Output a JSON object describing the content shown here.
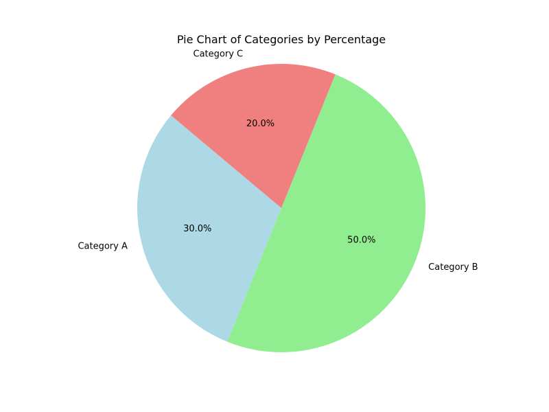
{
  "chart_data": {
    "type": "pie",
    "title": "Pie Chart of Categories by Percentage",
    "start_angle_deg": 140,
    "direction": "counterclockwise",
    "slices": [
      {
        "label": "Category A",
        "value": 30,
        "pct_label": "30.0%",
        "color": "#add8e6"
      },
      {
        "label": "Category B",
        "value": 50,
        "pct_label": "50.0%",
        "color": "#90ee90"
      },
      {
        "label": "Category C",
        "value": 20,
        "pct_label": "20.0%",
        "color": "#f08080"
      }
    ]
  }
}
